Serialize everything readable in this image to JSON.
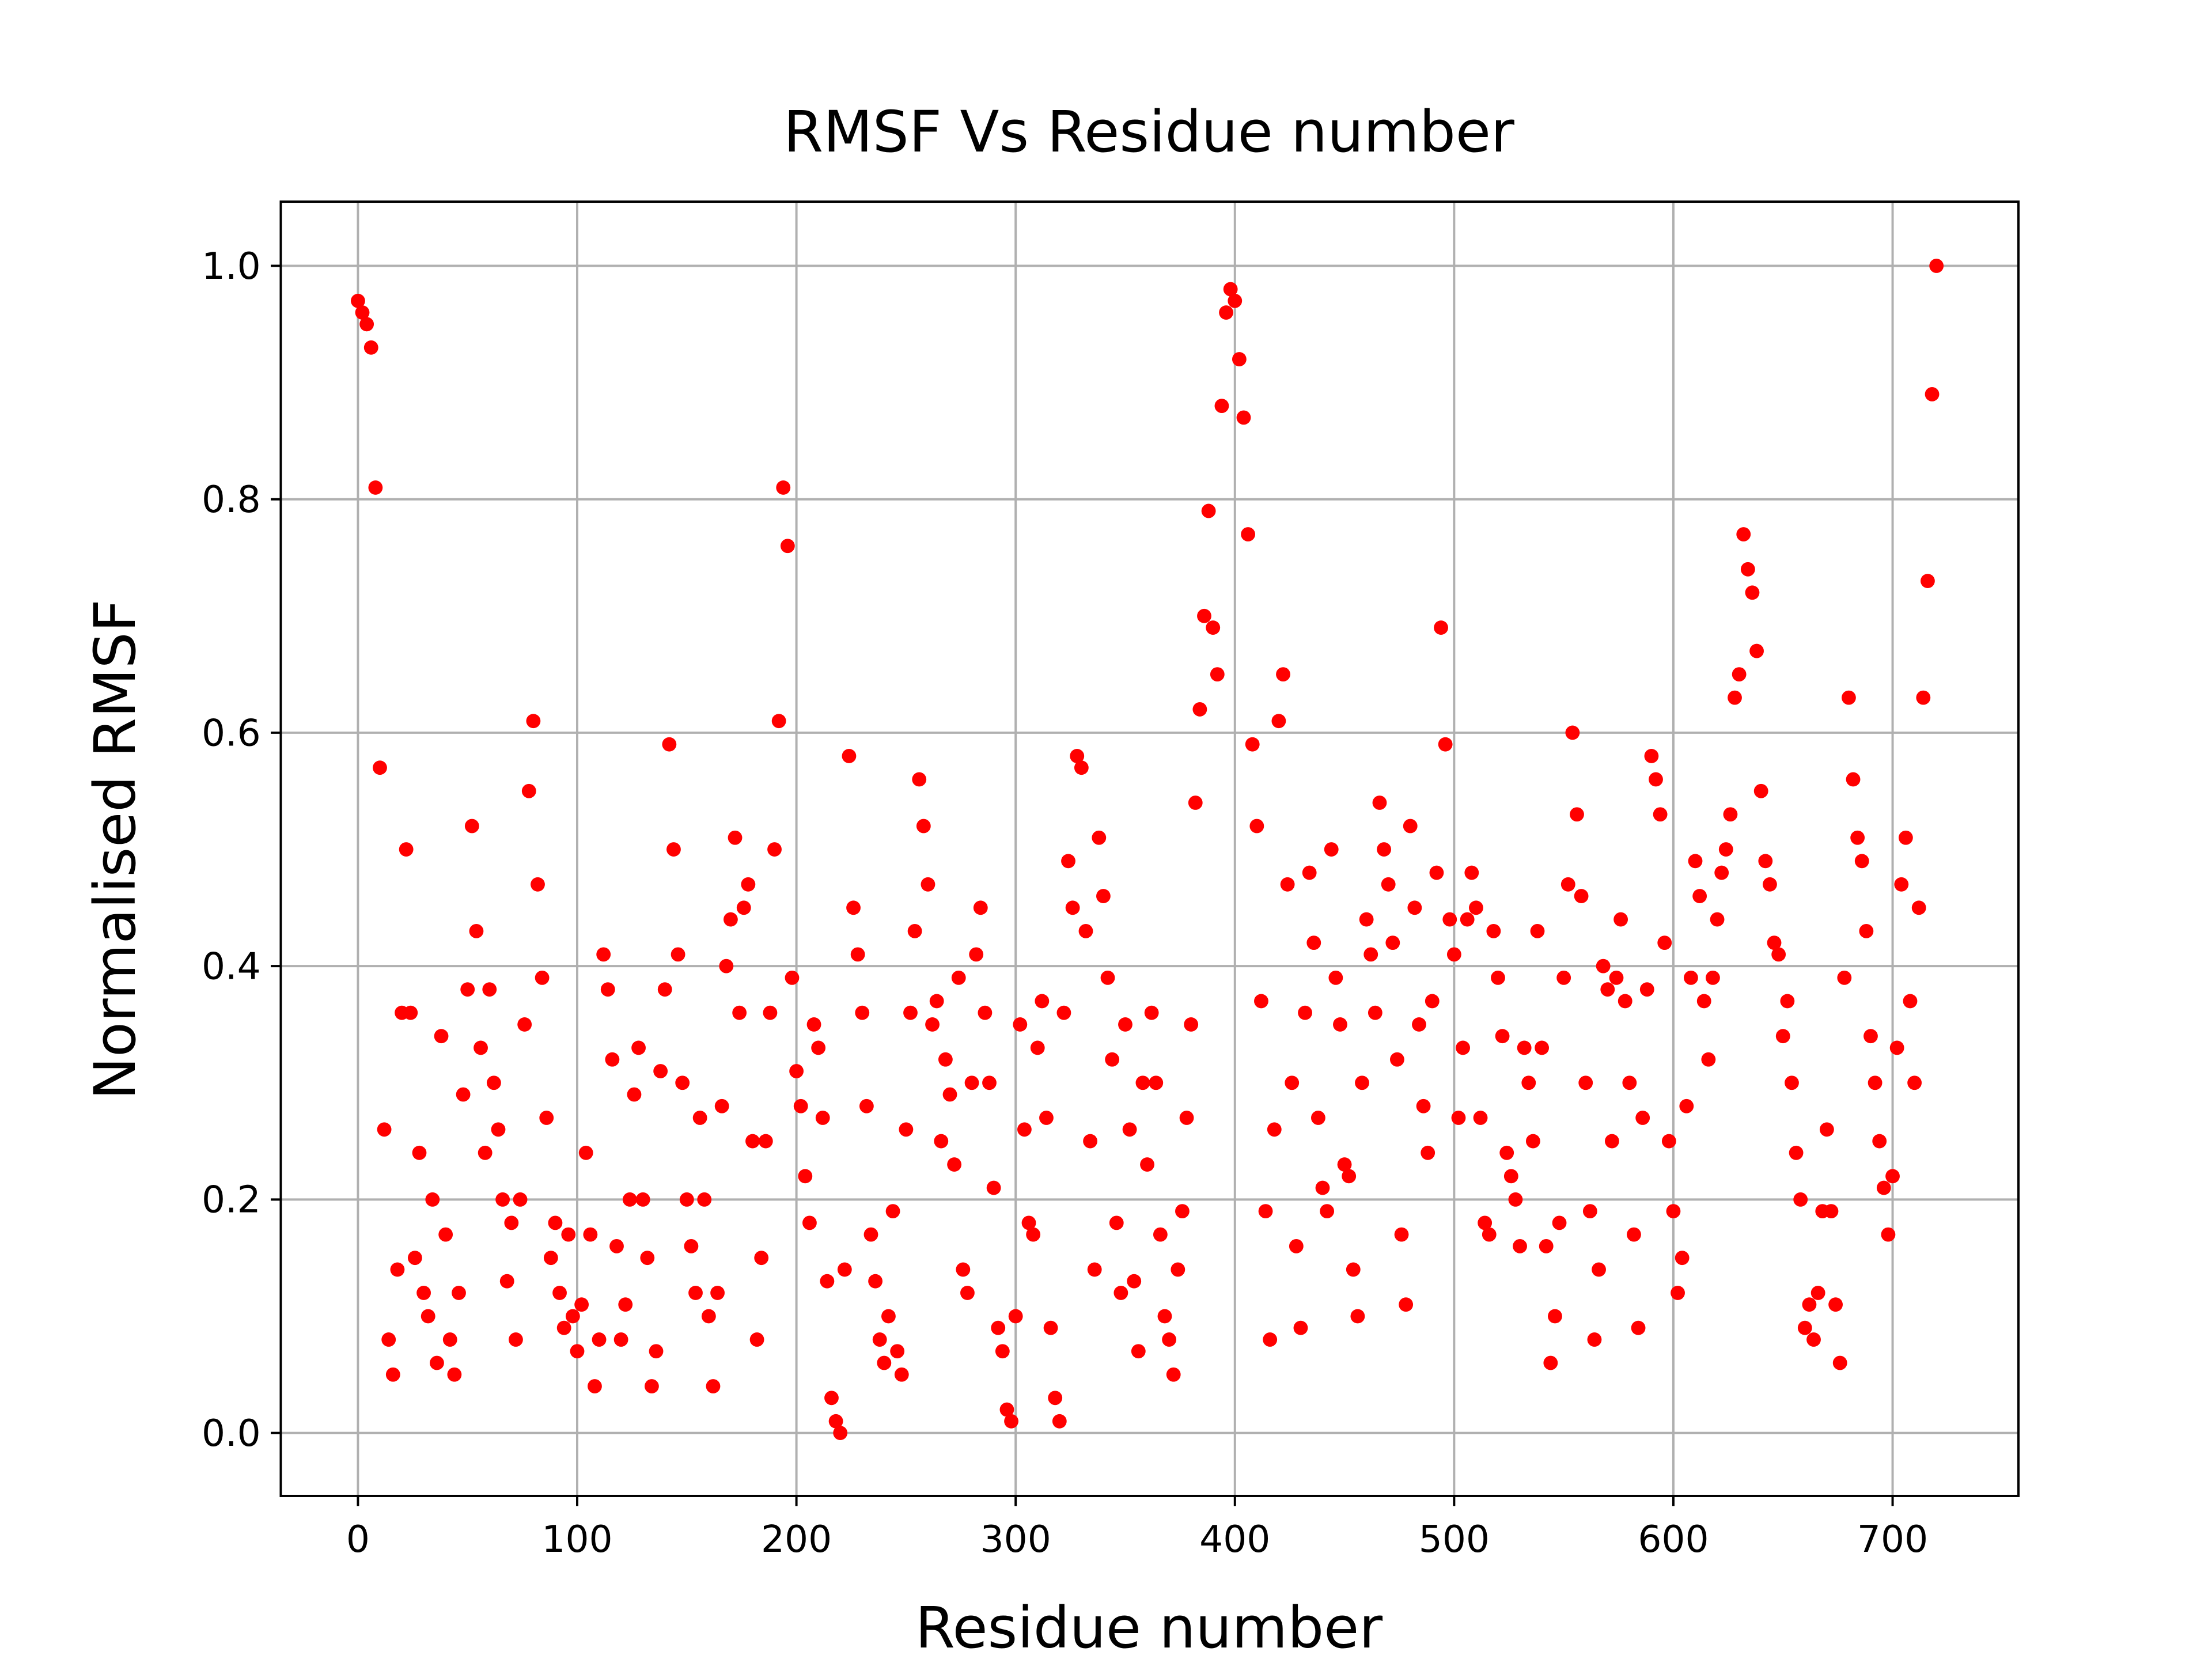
{
  "chart_data": {
    "type": "scatter",
    "title": "RMSF Vs Residue number",
    "x_label": "Residue number",
    "y_label": "Normalised RMSF",
    "color": "#ff0000",
    "grid": true,
    "xlim": [
      -35.2,
      757.4
    ],
    "ylim": [
      -0.054,
      1.055
    ],
    "xticks": [
      0,
      100,
      200,
      300,
      400,
      500,
      600,
      700
    ],
    "yticks": [
      {
        "value": 0,
        "label": "0.0"
      },
      0.2,
      0.4,
      0.6,
      0.8,
      {
        "value": 1,
        "label": "1.0"
      }
    ],
    "x": [
      0,
      2,
      4,
      6,
      8,
      10,
      12,
      14,
      16,
      18,
      20,
      22,
      24,
      26,
      28,
      30,
      32,
      34,
      36,
      38,
      40,
      42,
      44,
      46,
      48,
      50,
      52,
      54,
      56,
      58,
      60,
      62,
      64,
      66,
      68,
      70,
      72,
      74,
      76,
      78,
      80,
      82,
      84,
      86,
      88,
      90,
      92,
      94,
      96,
      98,
      100,
      102,
      104,
      106,
      108,
      110,
      112,
      114,
      116,
      118,
      120,
      122,
      124,
      126,
      128,
      130,
      132,
      134,
      136,
      138,
      140,
      142,
      144,
      146,
      148,
      150,
      152,
      154,
      156,
      158,
      160,
      162,
      164,
      166,
      168,
      170,
      172,
      174,
      176,
      178,
      180,
      182,
      184,
      186,
      188,
      190,
      192,
      194,
      196,
      198,
      200,
      202,
      204,
      206,
      208,
      210,
      212,
      214,
      216,
      218,
      220,
      222,
      224,
      226,
      228,
      230,
      232,
      234,
      236,
      238,
      240,
      242,
      244,
      246,
      248,
      250,
      252,
      254,
      256,
      258,
      260,
      262,
      264,
      266,
      268,
      270,
      272,
      274,
      276,
      278,
      280,
      282,
      284,
      286,
      288,
      290,
      292,
      294,
      296,
      298,
      300,
      302,
      304,
      306,
      308,
      310,
      312,
      314,
      316,
      318,
      320,
      322,
      324,
      326,
      328,
      330,
      332,
      334,
      336,
      338,
      340,
      342,
      344,
      346,
      348,
      350,
      352,
      354,
      356,
      358,
      360,
      362,
      364,
      366,
      368,
      370,
      372,
      374,
      376,
      378,
      380,
      382,
      384,
      386,
      388,
      390,
      392,
      394,
      396,
      398,
      400,
      402,
      404,
      406,
      408,
      410,
      412,
      414,
      416,
      418,
      420,
      422,
      424,
      426,
      428,
      430,
      432,
      434,
      436,
      438,
      440,
      442,
      444,
      446,
      448,
      450,
      452,
      454,
      456,
      458,
      460,
      462,
      464,
      466,
      468,
      470,
      472,
      474,
      476,
      478,
      480,
      482,
      484,
      486,
      488,
      490,
      492,
      494,
      496,
      498,
      500,
      502,
      504,
      506,
      508,
      510,
      512,
      514,
      516,
      518,
      520,
      522,
      524,
      526,
      528,
      530,
      532,
      534,
      536,
      538,
      540,
      542,
      544,
      546,
      548,
      550,
      552,
      554,
      556,
      558,
      560,
      562,
      564,
      566,
      568,
      570,
      572,
      574,
      576,
      578,
      580,
      582,
      584,
      586,
      588,
      590,
      592,
      594,
      596,
      598,
      600,
      602,
      604,
      606,
      608,
      610,
      612,
      614,
      616,
      618,
      620,
      622,
      624,
      626,
      628,
      630,
      632,
      634,
      636,
      638,
      640,
      642,
      644,
      646,
      648,
      650,
      652,
      654,
      656,
      658,
      660,
      662,
      664,
      666,
      668,
      670,
      672,
      674,
      676,
      678,
      680,
      682,
      684,
      686,
      688,
      690,
      692,
      694,
      696,
      698,
      700,
      702,
      704,
      706,
      708,
      710,
      712,
      714,
      716,
      718,
      720
    ],
    "values": [
      0.97,
      0.96,
      0.95,
      0.93,
      0.81,
      0.57,
      0.26,
      0.08,
      0.05,
      0.14,
      0.36,
      0.5,
      0.36,
      0.15,
      0.24,
      0.12,
      0.1,
      0.2,
      0.06,
      0.34,
      0.17,
      0.08,
      0.05,
      0.12,
      0.29,
      0.38,
      0.52,
      0.43,
      0.33,
      0.24,
      0.38,
      0.3,
      0.26,
      0.2,
      0.13,
      0.18,
      0.08,
      0.2,
      0.35,
      0.55,
      0.61,
      0.47,
      0.39,
      0.27,
      0.15,
      0.18,
      0.12,
      0.09,
      0.17,
      0.1,
      0.07,
      0.11,
      0.24,
      0.17,
      0.04,
      0.08,
      0.41,
      0.38,
      0.32,
      0.16,
      0.08,
      0.11,
      0.2,
      0.29,
      0.33,
      0.2,
      0.15,
      0.04,
      0.07,
      0.31,
      0.38,
      0.59,
      0.5,
      0.41,
      0.3,
      0.2,
      0.16,
      0.12,
      0.27,
      0.2,
      0.1,
      0.04,
      0.12,
      0.28,
      0.4,
      0.44,
      0.51,
      0.36,
      0.45,
      0.47,
      0.25,
      0.08,
      0.15,
      0.25,
      0.36,
      0.5,
      0.61,
      0.81,
      0.76,
      0.39,
      0.31,
      0.28,
      0.22,
      0.18,
      0.35,
      0.33,
      0.27,
      0.13,
      0.03,
      0.01,
      0.0,
      0.14,
      0.58,
      0.45,
      0.41,
      0.36,
      0.28,
      0.17,
      0.13,
      0.08,
      0.06,
      0.1,
      0.19,
      0.07,
      0.05,
      0.26,
      0.36,
      0.43,
      0.56,
      0.52,
      0.47,
      0.35,
      0.37,
      0.25,
      0.32,
      0.29,
      0.23,
      0.39,
      0.14,
      0.12,
      0.3,
      0.41,
      0.45,
      0.36,
      0.3,
      0.21,
      0.09,
      0.07,
      0.02,
      0.01,
      0.1,
      0.35,
      0.26,
      0.18,
      0.17,
      0.33,
      0.37,
      0.27,
      0.09,
      0.03,
      0.01,
      0.36,
      0.49,
      0.45,
      0.58,
      0.57,
      0.43,
      0.25,
      0.14,
      0.51,
      0.46,
      0.39,
      0.32,
      0.18,
      0.12,
      0.35,
      0.26,
      0.13,
      0.07,
      0.3,
      0.23,
      0.36,
      0.3,
      0.17,
      0.1,
      0.08,
      0.05,
      0.14,
      0.19,
      0.27,
      0.35,
      0.54,
      0.62,
      0.7,
      0.79,
      0.69,
      0.65,
      0.88,
      0.96,
      0.98,
      0.97,
      0.92,
      0.87,
      0.77,
      0.59,
      0.52,
      0.37,
      0.19,
      0.08,
      0.26,
      0.61,
      0.65,
      0.47,
      0.3,
      0.16,
      0.09,
      0.36,
      0.48,
      0.42,
      0.27,
      0.21,
      0.19,
      0.5,
      0.39,
      0.35,
      0.23,
      0.22,
      0.14,
      0.1,
      0.3,
      0.44,
      0.41,
      0.36,
      0.54,
      0.5,
      0.47,
      0.42,
      0.32,
      0.17,
      0.11,
      0.52,
      0.45,
      0.35,
      0.28,
      0.24,
      0.37,
      0.48,
      0.69,
      0.59,
      0.44,
      0.41,
      0.27,
      0.33,
      0.44,
      0.48,
      0.45,
      0.27,
      0.18,
      0.17,
      0.43,
      0.39,
      0.34,
      0.24,
      0.22,
      0.2,
      0.16,
      0.33,
      0.3,
      0.25,
      0.43,
      0.33,
      0.16,
      0.06,
      0.1,
      0.18,
      0.39,
      0.47,
      0.6,
      0.53,
      0.46,
      0.3,
      0.19,
      0.08,
      0.14,
      0.4,
      0.38,
      0.25,
      0.39,
      0.44,
      0.37,
      0.3,
      0.17,
      0.09,
      0.27,
      0.38,
      0.58,
      0.56,
      0.53,
      0.42,
      0.25,
      0.19,
      0.12,
      0.15,
      0.28,
      0.39,
      0.49,
      0.46,
      0.37,
      0.32,
      0.39,
      0.44,
      0.48,
      0.5,
      0.53,
      0.63,
      0.65,
      0.77,
      0.74,
      0.72,
      0.67,
      0.55,
      0.49,
      0.47,
      0.42,
      0.41,
      0.34,
      0.37,
      0.3,
      0.24,
      0.2,
      0.09,
      0.11,
      0.08,
      0.12,
      0.19,
      0.26,
      0.19,
      0.11,
      0.06,
      0.39,
      0.63,
      0.56,
      0.51,
      0.49,
      0.43,
      0.34,
      0.3,
      0.25,
      0.21,
      0.17,
      0.22,
      0.33,
      0.47,
      0.51,
      0.37,
      0.3,
      0.45,
      0.63,
      0.73,
      0.89,
      1.0
    ]
  }
}
